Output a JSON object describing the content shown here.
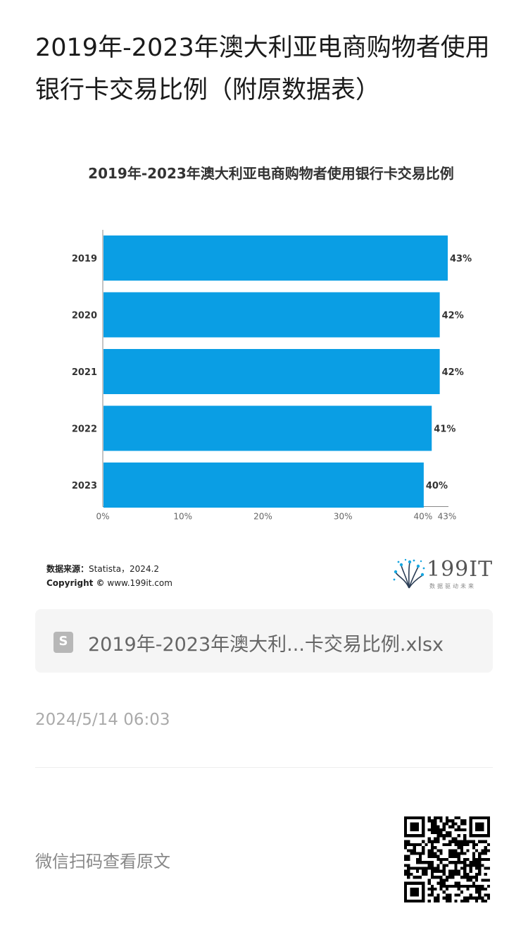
{
  "article": {
    "title": "2019年-2023年澳大利亚电商购物者使用银行卡交易比例（附原数据表）"
  },
  "chart_data": {
    "type": "bar",
    "orientation": "horizontal",
    "title": "2019年-2023年澳大利亚电商购物者使用银行卡交易比例",
    "categories": [
      "2019",
      "2020",
      "2021",
      "2022",
      "2023"
    ],
    "values": [
      43,
      42,
      42,
      41,
      40
    ],
    "value_labels": [
      "43%",
      "42%",
      "42%",
      "41%",
      "40%"
    ],
    "x_ticks": [
      0,
      10,
      20,
      30,
      40,
      43
    ],
    "x_tick_labels": [
      "0%",
      "10%",
      "20%",
      "30%",
      "40%",
      "43%"
    ],
    "xlim": [
      0,
      43
    ],
    "xlabel": "",
    "ylabel": "",
    "grid": false,
    "legend": "none",
    "bar_color": "#0a9ee4"
  },
  "chart_footer": {
    "source_label": "数据来源：",
    "source_value": "Statista，2024.2",
    "copyright_label": "Copyright ©",
    "copyright_value": "www.199it.com",
    "brand_name": "199IT",
    "brand_tagline": "数据驱动未来"
  },
  "attachment": {
    "icon": "spreadsheet-file-icon",
    "icon_glyph": "S",
    "filename": "2019年-2023年澳大利...卡交易比例.xlsx"
  },
  "meta": {
    "timestamp": "2024/5/14 06:03",
    "read_original": "微信扫码查看原文"
  },
  "qr": {
    "icon": "qr-code-icon"
  }
}
